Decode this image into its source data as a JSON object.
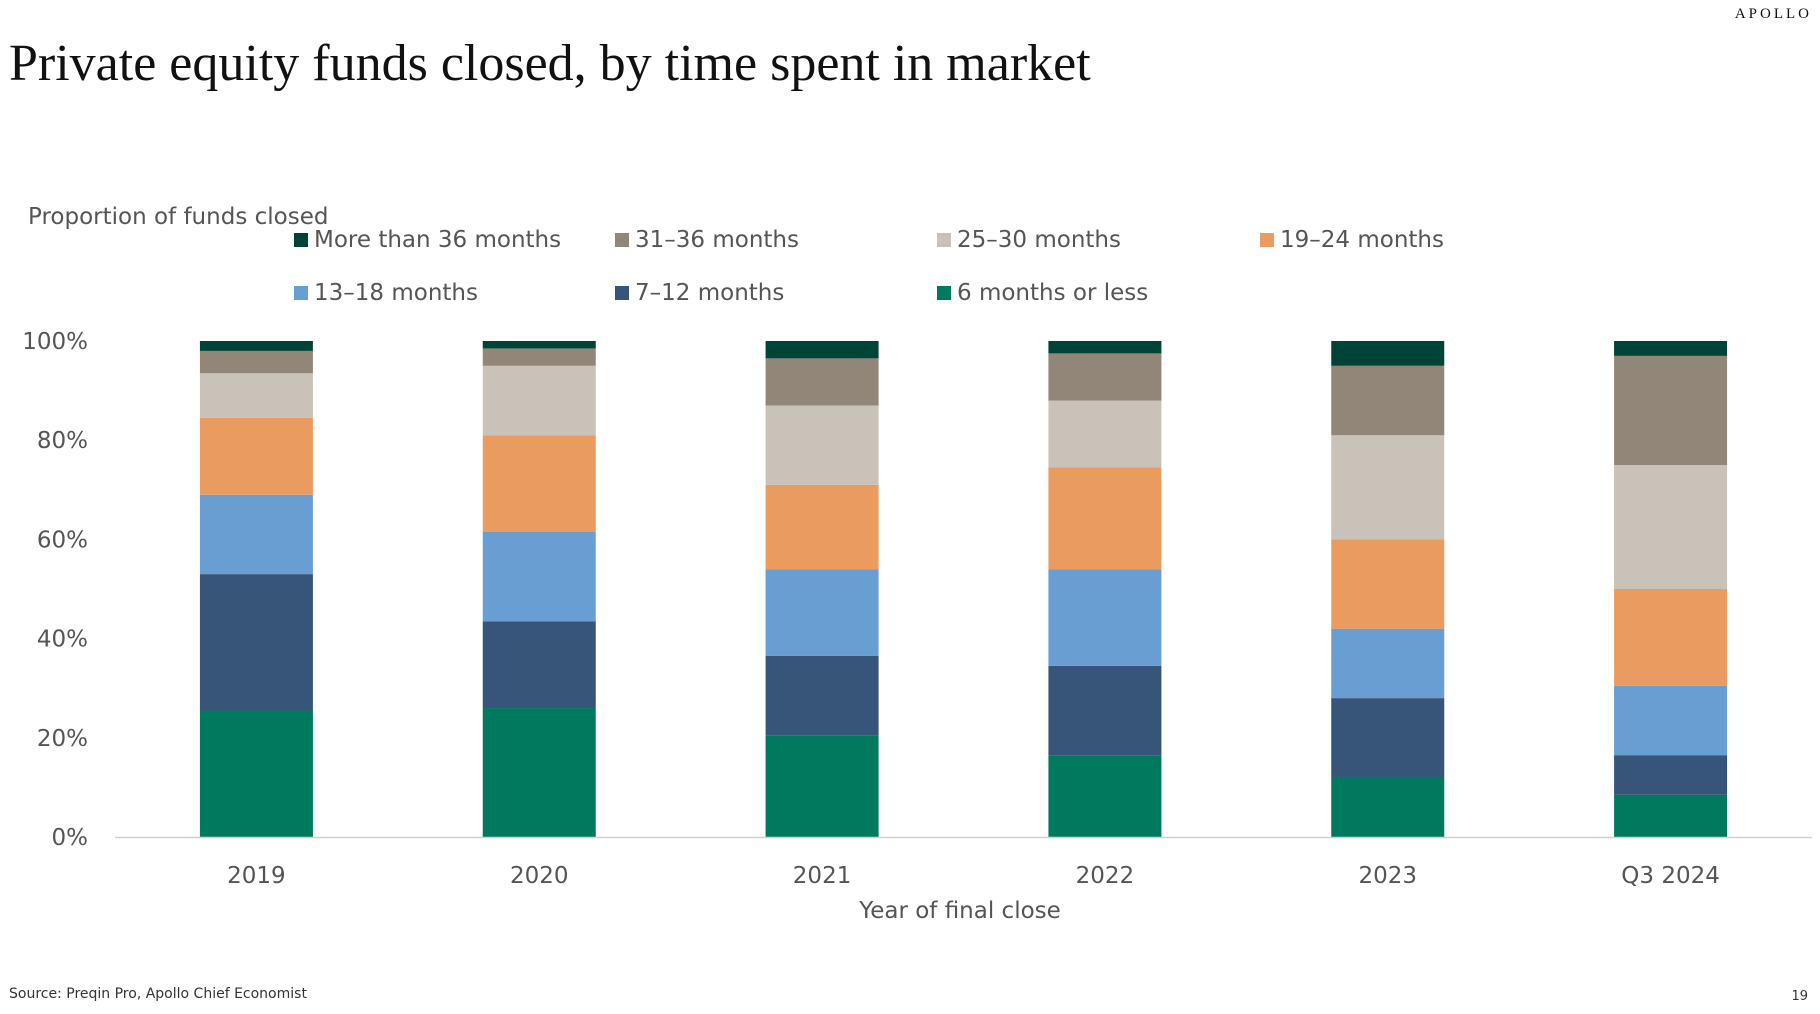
{
  "brand": "APOLLO",
  "title": "Private equity funds closed, by time spent in market",
  "source": "Source: Preqin Pro, Apollo Chief Economist",
  "page_number": "19",
  "chart_data": {
    "type": "bar",
    "stacked": true,
    "title": "Private equity funds closed, by time spent in market",
    "ylabel": "Proportion of funds closed",
    "xlabel": "Year of final close",
    "ylim": [
      0,
      100
    ],
    "yticks": [
      "0%",
      "20%",
      "40%",
      "60%",
      "80%",
      "100%"
    ],
    "legend_position": "top",
    "categories": [
      "2019",
      "2020",
      "2021",
      "2022",
      "2023",
      "Q3 2024"
    ],
    "series": [
      {
        "name": "6 months or less",
        "color": "#007a5e",
        "values": [
          25.5,
          26,
          20.5,
          16.5,
          12,
          8.5
        ]
      },
      {
        "name": "7–12 months",
        "color": "#375578",
        "values": [
          27.5,
          17.5,
          16,
          18,
          16,
          8
        ]
      },
      {
        "name": "13–18 months",
        "color": "#689ed2",
        "values": [
          16,
          18,
          17.5,
          19.5,
          14,
          14
        ]
      },
      {
        "name": "19–24 months",
        "color": "#ea9b5f",
        "values": [
          15.5,
          19.5,
          17,
          20.5,
          18,
          19.5
        ]
      },
      {
        "name": "25–30 months",
        "color": "#c9c2b8",
        "values": [
          9,
          14,
          16,
          13.5,
          21,
          25
        ]
      },
      {
        "name": "31–36 months",
        "color": "#918678",
        "values": [
          4.5,
          3.5,
          9.5,
          9.5,
          14,
          22
        ]
      },
      {
        "name": "More than 36 months",
        "color": "#004437",
        "values": [
          2,
          1.5,
          3.5,
          2.5,
          5,
          3
        ]
      }
    ]
  }
}
